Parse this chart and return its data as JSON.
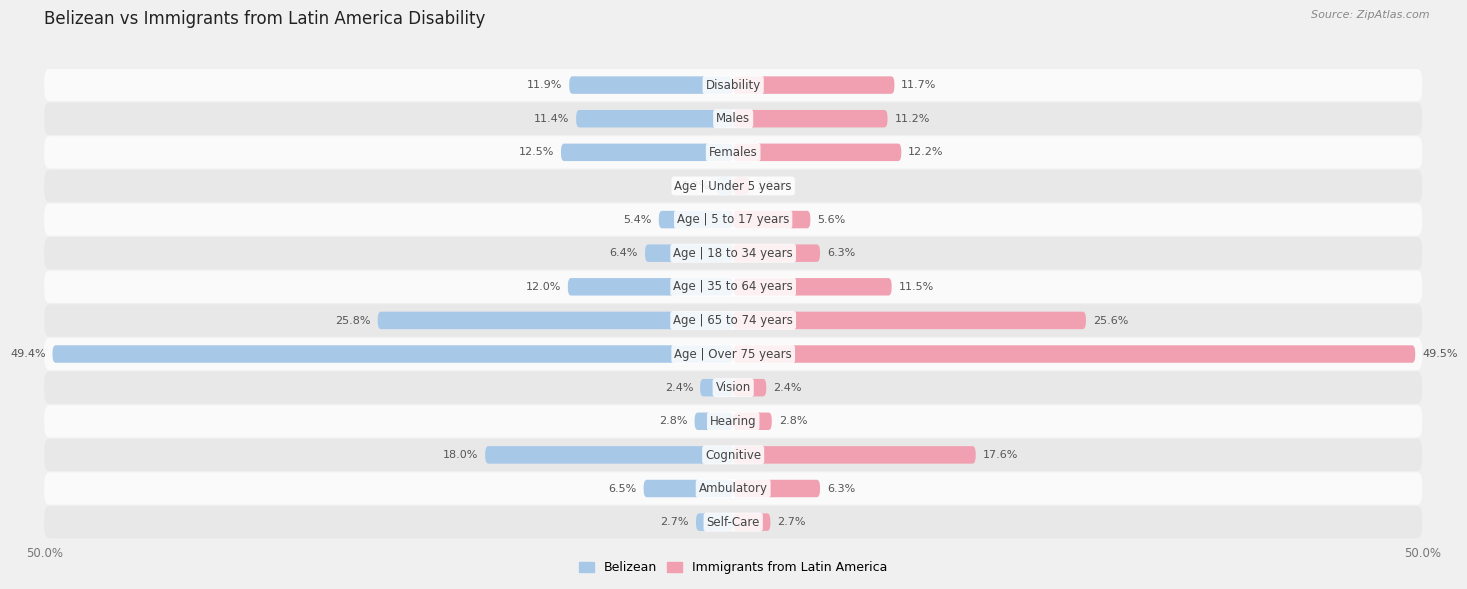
{
  "title": "Belizean vs Immigrants from Latin America Disability",
  "source": "Source: ZipAtlas.com",
  "categories": [
    "Disability",
    "Males",
    "Females",
    "Age | Under 5 years",
    "Age | 5 to 17 years",
    "Age | 18 to 34 years",
    "Age | 35 to 64 years",
    "Age | 65 to 74 years",
    "Age | Over 75 years",
    "Vision",
    "Hearing",
    "Cognitive",
    "Ambulatory",
    "Self-Care"
  ],
  "belizean": [
    11.9,
    11.4,
    12.5,
    1.2,
    5.4,
    6.4,
    12.0,
    25.8,
    49.4,
    2.4,
    2.8,
    18.0,
    6.5,
    2.7
  ],
  "immigrants": [
    11.7,
    11.2,
    12.2,
    1.2,
    5.6,
    6.3,
    11.5,
    25.6,
    49.5,
    2.4,
    2.8,
    17.6,
    6.3,
    2.7
  ],
  "belizean_color": "#a8c8e8",
  "immigrant_color": "#f0a0b0",
  "axis_limit": 50.0,
  "bar_height": 0.52,
  "background_color": "#f0f0f0",
  "row_bg_light": "#fafafa",
  "row_bg_dark": "#e8e8e8",
  "title_fontsize": 12,
  "label_fontsize": 8.5,
  "value_fontsize": 8,
  "legend_fontsize": 9
}
